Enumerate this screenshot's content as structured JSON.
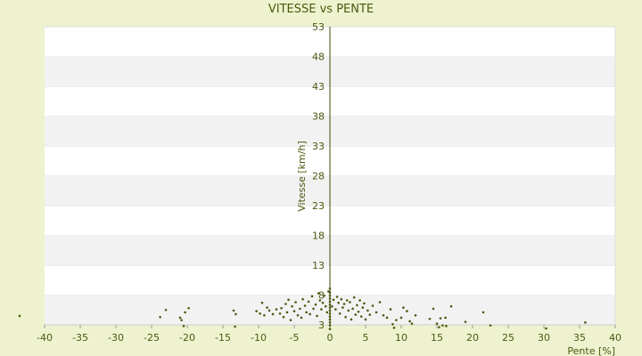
{
  "chart_data": {
    "type": "scatter",
    "title": "VITESSE vs PENTE",
    "xlabel": "Pente [%]",
    "ylabel": "Vitesse [km/h]",
    "xlim": [
      -40,
      40
    ],
    "ylim": [
      3,
      53
    ],
    "xticks": [
      -40,
      -35,
      -30,
      -25,
      -20,
      -15,
      -10,
      -5,
      0,
      5,
      10,
      15,
      20,
      25,
      30,
      35,
      40
    ],
    "yticks": [
      3,
      8,
      13,
      18,
      23,
      28,
      33,
      38,
      43,
      48,
      53
    ],
    "grid": "horizontal alternating bands",
    "colors": {
      "background": "#eef2cf",
      "plot": "#ffffff",
      "band": "#f2f2f2",
      "axis": "#3d4a0a",
      "point": "#4a5a10"
    },
    "series": [
      {
        "points": [
          [
            -43.5,
            4.5
          ],
          [
            -23.8,
            4.3
          ],
          [
            -23,
            5.5
          ],
          [
            -21,
            4.2
          ],
          [
            -20.8,
            3.8
          ],
          [
            -20.3,
            5.1
          ],
          [
            -19.8,
            5.8
          ],
          [
            -20.5,
            2.8
          ],
          [
            -13.5,
            5.4
          ],
          [
            -13.2,
            4.8
          ],
          [
            -13.3,
            2.7
          ],
          [
            -10.3,
            5.3
          ],
          [
            -9.8,
            4.9
          ],
          [
            -9.5,
            6.7
          ],
          [
            -9.2,
            4.6
          ],
          [
            -8.8,
            5.9
          ],
          [
            -8.5,
            5.4
          ],
          [
            -8,
            4.8
          ],
          [
            -7.5,
            5.6
          ],
          [
            -7,
            4.9
          ],
          [
            -6.8,
            5.8
          ],
          [
            -6.5,
            4.3
          ],
          [
            -6.2,
            6.5
          ],
          [
            -6,
            5.1
          ],
          [
            -5.8,
            7.2
          ],
          [
            -5.5,
            3.8
          ],
          [
            -5.3,
            6.1
          ],
          [
            -5,
            5.3
          ],
          [
            -4.8,
            6.8
          ],
          [
            -4.5,
            4.6
          ],
          [
            -4.2,
            5.7
          ],
          [
            -4,
            4.2
          ],
          [
            -3.8,
            7.3
          ],
          [
            -3.5,
            6.2
          ],
          [
            -3.3,
            5.1
          ],
          [
            -3,
            6.9
          ],
          [
            -2.8,
            4.8
          ],
          [
            -2.5,
            7.8
          ],
          [
            -2.3,
            5.7
          ],
          [
            -2,
            6.4
          ],
          [
            -1.8,
            4.5
          ],
          [
            -1.6,
            8.3
          ],
          [
            -1.4,
            7.1
          ],
          [
            -1.2,
            5.6
          ],
          [
            -1,
            6.7
          ],
          [
            -0.8,
            7.9
          ],
          [
            -0.6,
            6.1
          ],
          [
            -0.4,
            5.1
          ],
          [
            -0.2,
            8.6
          ],
          [
            0,
            2.3
          ],
          [
            0,
            2.9
          ],
          [
            0,
            3.4
          ],
          [
            0,
            3.9
          ],
          [
            0,
            4.4
          ],
          [
            0,
            4.9
          ],
          [
            0,
            5.4
          ],
          [
            0,
            5.9
          ],
          [
            0,
            6.4
          ],
          [
            0,
            6.9
          ],
          [
            0,
            7.4
          ],
          [
            0,
            7.9
          ],
          [
            0,
            8.4
          ],
          [
            0,
            9.1
          ],
          [
            0.3,
            6.1
          ],
          [
            0.5,
            7.2
          ],
          [
            0.8,
            5.6
          ],
          [
            1,
            7.7
          ],
          [
            1.2,
            6.7
          ],
          [
            1.4,
            4.9
          ],
          [
            1.6,
            7.3
          ],
          [
            1.8,
            5.9
          ],
          [
            2,
            6.5
          ],
          [
            2.2,
            4.3
          ],
          [
            2.4,
            7.1
          ],
          [
            2.6,
            5.4
          ],
          [
            2.8,
            6.8
          ],
          [
            3,
            3.9
          ],
          [
            3.2,
            5.7
          ],
          [
            3.4,
            7.6
          ],
          [
            3.6,
            4.7
          ],
          [
            3.8,
            6.3
          ],
          [
            4,
            5.2
          ],
          [
            4.2,
            7.1
          ],
          [
            4.4,
            4.4
          ],
          [
            4.6,
            5.9
          ],
          [
            4.8,
            6.6
          ],
          [
            5,
            3.9
          ],
          [
            5.3,
            5.4
          ],
          [
            5.6,
            4.7
          ],
          [
            6,
            6.2
          ],
          [
            6.5,
            5.1
          ],
          [
            7,
            6.8
          ],
          [
            7.5,
            4.6
          ],
          [
            8,
            4.2
          ],
          [
            8.5,
            5.6
          ],
          [
            8.8,
            3.1
          ],
          [
            9,
            2.5
          ],
          [
            9.3,
            3.8
          ],
          [
            10,
            4.2
          ],
          [
            10.3,
            5.9
          ],
          [
            10.8,
            5.3
          ],
          [
            11.2,
            3.6
          ],
          [
            11.5,
            3.2
          ],
          [
            12,
            4.6
          ],
          [
            14,
            4
          ],
          [
            14.5,
            5.7
          ],
          [
            15,
            3.2
          ],
          [
            15.5,
            4.1
          ],
          [
            15.3,
            2.6
          ],
          [
            15.8,
            2.9
          ],
          [
            16.2,
            4.2
          ],
          [
            16.3,
            2.8
          ],
          [
            17,
            6.1
          ],
          [
            19,
            3.5
          ],
          [
            21.5,
            5.1
          ],
          [
            22.5,
            2.9
          ],
          [
            30.3,
            2.4
          ],
          [
            35.8,
            3.4
          ]
        ]
      }
    ]
  }
}
